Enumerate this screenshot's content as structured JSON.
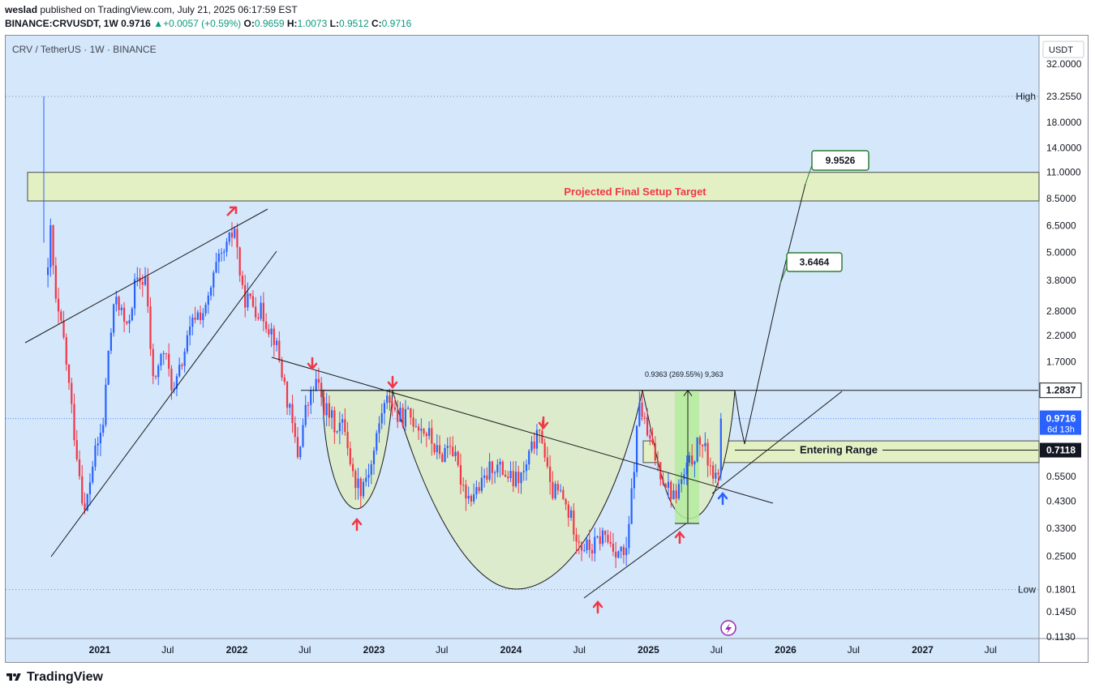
{
  "header": {
    "user": "weslad",
    "published_text": "published on TradingView.com, July 21, 2025 06:17:59 EST",
    "symbol": "BINANCE:CRVUSDT, 1W",
    "price": "0.9716",
    "change": "+0.0057 (+0.59%)",
    "o_label": "O:",
    "o": "0.9659",
    "h_label": "H:",
    "h": "1.0073",
    "l_label": "L:",
    "l": "0.9512",
    "c_label": "C:",
    "c": "0.9716"
  },
  "chart_title": "CRV / TetherUS · 1W · BINANCE",
  "currency": "USDT",
  "footer_brand": "TradingView",
  "colors": {
    "background": "#d4e7fb",
    "up": "#2962ff",
    "down": "#f23645",
    "zone_fill": "#e3f0c4",
    "cup_fill": "#dcebcc",
    "green_band": "#b5ec9e",
    "target_text": "#f23645",
    "badge_border": "#2e7d32",
    "current_price": "#2962ff"
  },
  "labels": {
    "projected": "Projected Final Setup Target",
    "entering": "Entering Range",
    "measure": "0.9363 (269.55%) 9,363",
    "target1": "3.6464",
    "target2": "9.9526",
    "high_tag": "High",
    "low_tag": "Low",
    "countdown": "6d 13h"
  },
  "chart_data": {
    "type": "candlestick",
    "title": "CRV / TetherUS · 1W · BINANCE",
    "y_scale": "log",
    "y_ticks": [
      32.0,
      23.255,
      18.0,
      14.0,
      11.0,
      8.5,
      6.5,
      5.0,
      3.8,
      2.8,
      2.2,
      1.7,
      1.2837,
      0.9716,
      0.7118,
      0.55,
      0.43,
      0.33,
      0.25,
      0.1801,
      0.145,
      0.113
    ],
    "y_tick_labels": [
      "32.0000",
      "23.2550",
      "18.0000",
      "14.0000",
      "11.0000",
      "8.5000",
      "6.5000",
      "5.0000",
      "3.8000",
      "2.8000",
      "2.2000",
      "1.7000",
      "1.2837",
      "0.9716",
      "0.7118",
      "0.5500",
      "0.4300",
      "0.3300",
      "0.2500",
      "0.1801",
      "0.1450",
      "0.1130"
    ],
    "x_ticks": [
      "2021",
      "Jul",
      "2022",
      "Jul",
      "2023",
      "Jul",
      "2024",
      "Jul",
      "2025",
      "Jul",
      "2026",
      "Jul",
      "2027",
      "Jul"
    ],
    "x_tick_dates": [
      "2021-01-01",
      "2021-07-01",
      "2022-01-01",
      "2022-07-01",
      "2023-01-01",
      "2023-07-01",
      "2024-01-01",
      "2024-07-01",
      "2025-01-01",
      "2025-07-01",
      "2026-01-01",
      "2026-07-01",
      "2027-01-01",
      "2027-07-01"
    ],
    "high": 23.255,
    "low": 0.1801,
    "last": 0.9716,
    "levels": {
      "resistance": 1.2837,
      "entry": 0.7118,
      "target1": 3.6464,
      "target2": 9.9526
    },
    "zones": [
      {
        "name": "Projected Final Setup Target",
        "from": 8.3,
        "to": 11.0
      },
      {
        "name": "Entering Range",
        "from": 0.63,
        "to": 0.78
      }
    ],
    "price_path": [
      [
        "2020-08-16",
        4.0
      ],
      [
        "2020-08-23",
        6.2
      ],
      [
        "2020-09-06",
        3.0
      ],
      [
        "2020-09-27",
        2.1
      ],
      [
        "2020-10-25",
        0.85
      ],
      [
        "2020-11-22",
        0.38
      ],
      [
        "2020-12-13",
        0.62
      ],
      [
        "2021-01-10",
        0.92
      ],
      [
        "2021-01-24",
        1.9
      ],
      [
        "2021-02-14",
        3.3
      ],
      [
        "2021-03-14",
        2.3
      ],
      [
        "2021-04-04",
        3.6
      ],
      [
        "2021-05-02",
        3.9
      ],
      [
        "2021-05-23",
        1.4
      ],
      [
        "2021-06-20",
        1.9
      ],
      [
        "2021-07-18",
        1.25
      ],
      [
        "2021-08-15",
        1.9
      ],
      [
        "2021-09-12",
        2.7
      ],
      [
        "2021-10-10",
        2.8
      ],
      [
        "2021-11-07",
        4.3
      ],
      [
        "2021-12-05",
        5.2
      ],
      [
        "2021-12-26",
        6.4
      ],
      [
        "2022-01-16",
        3.3
      ],
      [
        "2022-02-13",
        3.0
      ],
      [
        "2022-03-13",
        2.7
      ],
      [
        "2022-04-10",
        2.2
      ],
      [
        "2022-05-08",
        1.35
      ],
      [
        "2022-06-12",
        0.68
      ],
      [
        "2022-07-03",
        1.05
      ],
      [
        "2022-07-31",
        1.4
      ],
      [
        "2022-08-21",
        1.1
      ],
      [
        "2022-09-18",
        0.92
      ],
      [
        "2022-10-16",
        0.9
      ],
      [
        "2022-11-06",
        0.55
      ],
      [
        "2022-11-27",
        0.5
      ],
      [
        "2022-12-25",
        0.62
      ],
      [
        "2023-01-22",
        1.05
      ],
      [
        "2023-02-12",
        1.2
      ],
      [
        "2023-03-05",
        0.98
      ],
      [
        "2023-04-02",
        1.0
      ],
      [
        "2023-04-23",
        0.95
      ],
      [
        "2023-05-28",
        0.82
      ],
      [
        "2023-06-25",
        0.66
      ],
      [
        "2023-07-23",
        0.78
      ],
      [
        "2023-08-13",
        0.58
      ],
      [
        "2023-09-10",
        0.45
      ],
      [
        "2023-10-15",
        0.5
      ],
      [
        "2023-11-12",
        0.62
      ],
      [
        "2023-12-10",
        0.58
      ],
      [
        "2024-01-07",
        0.52
      ],
      [
        "2024-02-04",
        0.56
      ],
      [
        "2024-03-03",
        0.78
      ],
      [
        "2024-03-24",
        0.82
      ],
      [
        "2024-04-14",
        0.48
      ],
      [
        "2024-05-12",
        0.46
      ],
      [
        "2024-06-16",
        0.34
      ],
      [
        "2024-07-07",
        0.28
      ],
      [
        "2024-08-04",
        0.27
      ],
      [
        "2024-09-01",
        0.31
      ],
      [
        "2024-10-06",
        0.27
      ],
      [
        "2024-11-03",
        0.25
      ],
      [
        "2024-11-24",
        0.62
      ],
      [
        "2024-12-08",
        1.15
      ],
      [
        "2024-12-29",
        0.82
      ],
      [
        "2025-01-26",
        0.62
      ],
      [
        "2025-02-16",
        0.52
      ],
      [
        "2025-03-09",
        0.45
      ],
      [
        "2025-03-30",
        0.52
      ],
      [
        "2025-04-20",
        0.62
      ],
      [
        "2025-05-18",
        0.78
      ],
      [
        "2025-06-15",
        0.62
      ],
      [
        "2025-06-29",
        0.52
      ],
      [
        "2025-07-13",
        0.72
      ],
      [
        "2025-07-20",
        0.9716
      ]
    ]
  }
}
